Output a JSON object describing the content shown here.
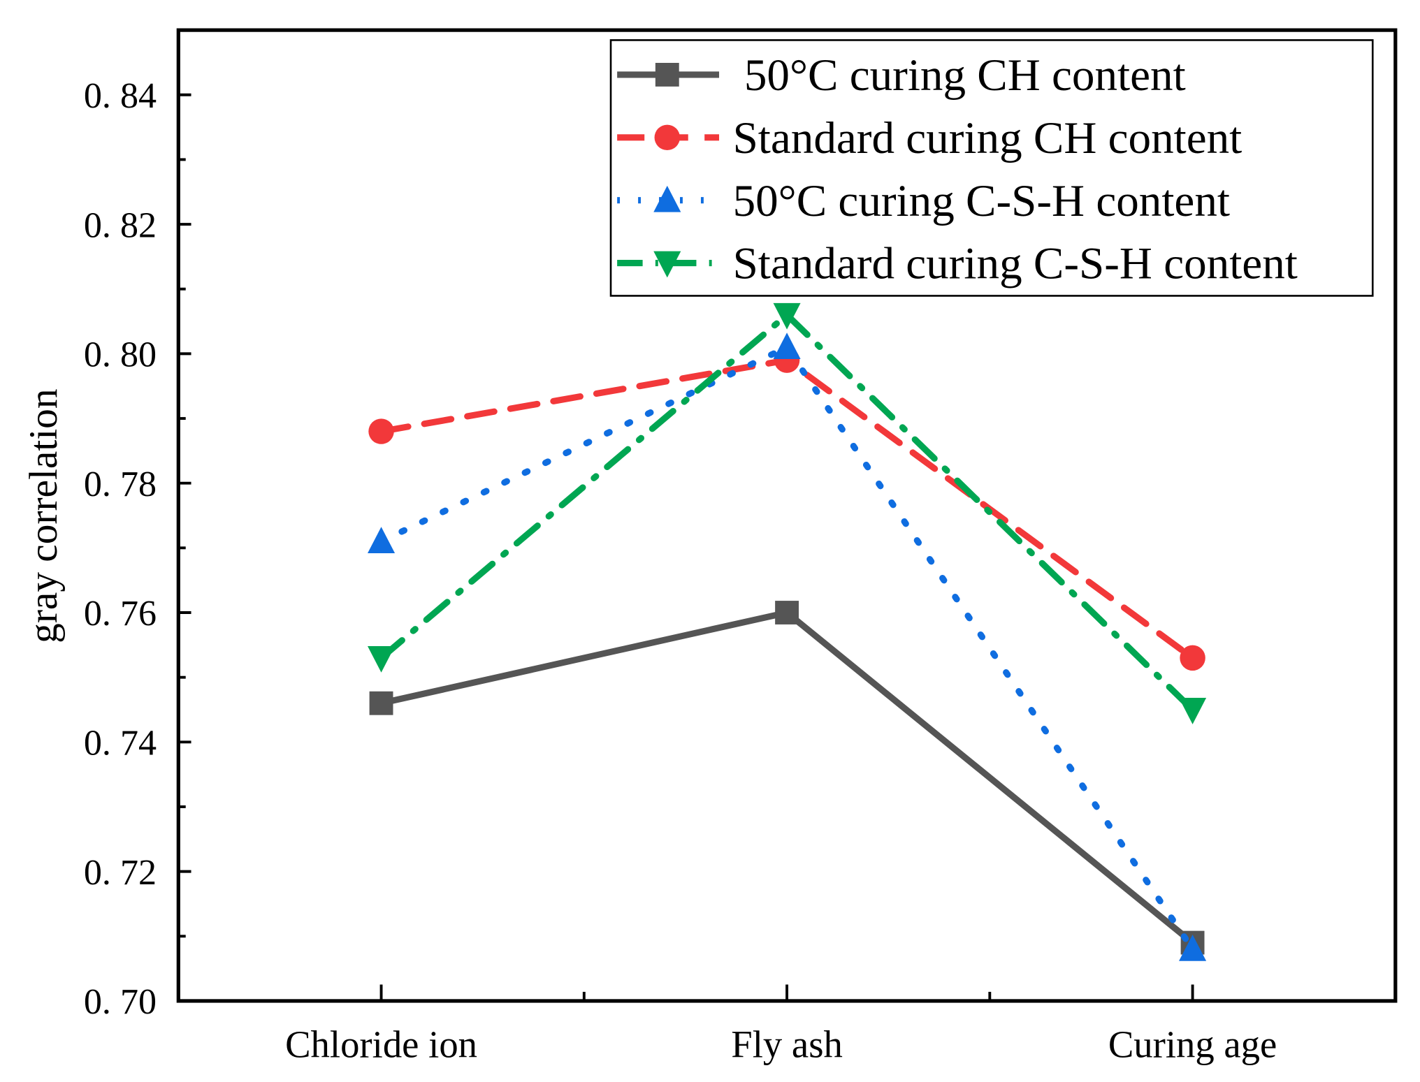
{
  "chart_data": {
    "type": "line",
    "title": "",
    "xlabel": "",
    "ylabel": "gray correlation",
    "categories": [
      "Chloride ion",
      "Fly ash",
      "Curing age"
    ],
    "ylim": [
      0.7,
      0.85
    ],
    "yticks": [
      0.7,
      0.72,
      0.74,
      0.76,
      0.78,
      0.8,
      0.82,
      0.84
    ],
    "ytick_labels": [
      "0. 70",
      "0. 72",
      "0. 74",
      "0. 76",
      "0. 78",
      "0. 80",
      "0. 82",
      "0. 84"
    ],
    "grid": false,
    "legend_position": "top-right",
    "series": [
      {
        "name": " 50°C curing CH content",
        "values": [
          0.746,
          0.76,
          0.709
        ],
        "color": "#555555",
        "marker": "square",
        "dash": "solid"
      },
      {
        "name": "Standard curing CH content",
        "values": [
          0.788,
          0.799,
          0.753
        ],
        "color": "#f2383a",
        "marker": "circle",
        "dash": "dash"
      },
      {
        "name": "50°C curing C-S-H content",
        "values": [
          0.771,
          0.801,
          0.708
        ],
        "color": "#0f6de0",
        "marker": "triangle-up",
        "dash": "dot"
      },
      {
        "name": "Standard curing C-S-H content",
        "values": [
          0.753,
          0.806,
          0.745
        ],
        "color": "#00a652",
        "marker": "triangle-down",
        "dash": "dashdot"
      }
    ]
  }
}
